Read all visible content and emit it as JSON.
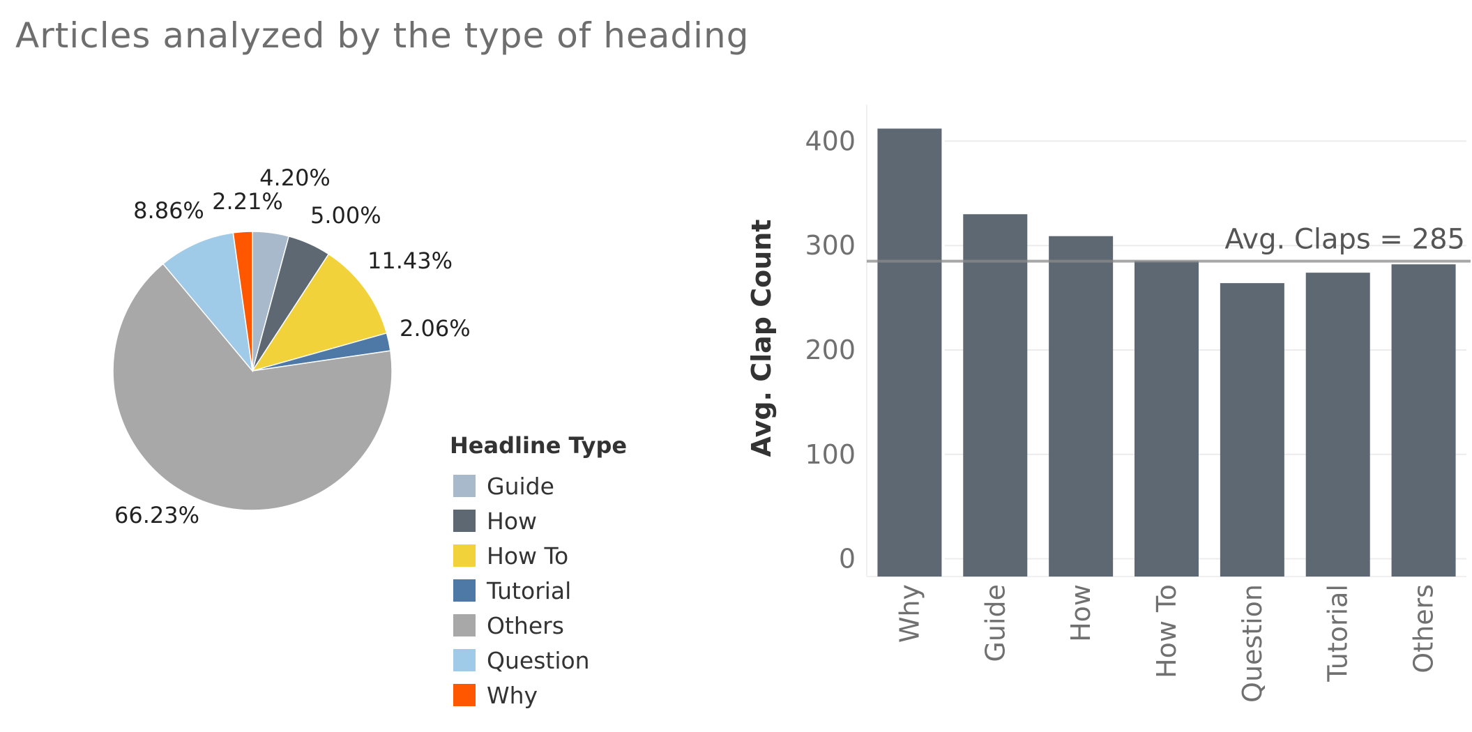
{
  "title": "Articles analyzed by the type of heading",
  "legend": {
    "title": "Headline Type",
    "items": [
      {
        "label": "Guide",
        "color": "#a9b9cc"
      },
      {
        "label": "How",
        "color": "#5e6872"
      },
      {
        "label": "How To",
        "color": "#f2d23b"
      },
      {
        "label": "Tutorial",
        "color": "#4e79a7"
      },
      {
        "label": "Others",
        "color": "#a8a8a8"
      },
      {
        "label": "Question",
        "color": "#a0cbe8"
      },
      {
        "label": "Why",
        "color": "#ff5700"
      }
    ]
  },
  "chart_data": [
    {
      "type": "pie",
      "slices": [
        {
          "label": "Guide",
          "value": 4.2,
          "text": "4.20%",
          "color": "#a9b9cc"
        },
        {
          "label": "How",
          "value": 5.0,
          "text": "5.00%",
          "color": "#5e6872"
        },
        {
          "label": "How To",
          "value": 11.43,
          "text": "11.43%",
          "color": "#f2d23b"
        },
        {
          "label": "Tutorial",
          "value": 2.06,
          "text": "2.06%",
          "color": "#4e79a7"
        },
        {
          "label": "Others",
          "value": 66.23,
          "text": "66.23%",
          "color": "#a8a8a8"
        },
        {
          "label": "Question",
          "value": 8.86,
          "text": "8.86%",
          "color": "#a0cbe8"
        },
        {
          "label": "Why",
          "value": 2.21,
          "text": "2.21%",
          "color": "#ff5700"
        }
      ]
    },
    {
      "type": "bar",
      "categories": [
        "Why",
        "Guide",
        "How",
        "How To",
        "Question",
        "Tutorial",
        "Others"
      ],
      "values": [
        412,
        330,
        309,
        285,
        264,
        274,
        282
      ],
      "ylabel": "Avg. Clap Count",
      "xlabel": "",
      "ylim": [
        -17,
        435
      ],
      "yticks": [
        0,
        100,
        200,
        300,
        400
      ],
      "bar_color": "#5e6872",
      "reference_line": {
        "value": 285,
        "label": "Avg. Claps = 285"
      }
    }
  ]
}
